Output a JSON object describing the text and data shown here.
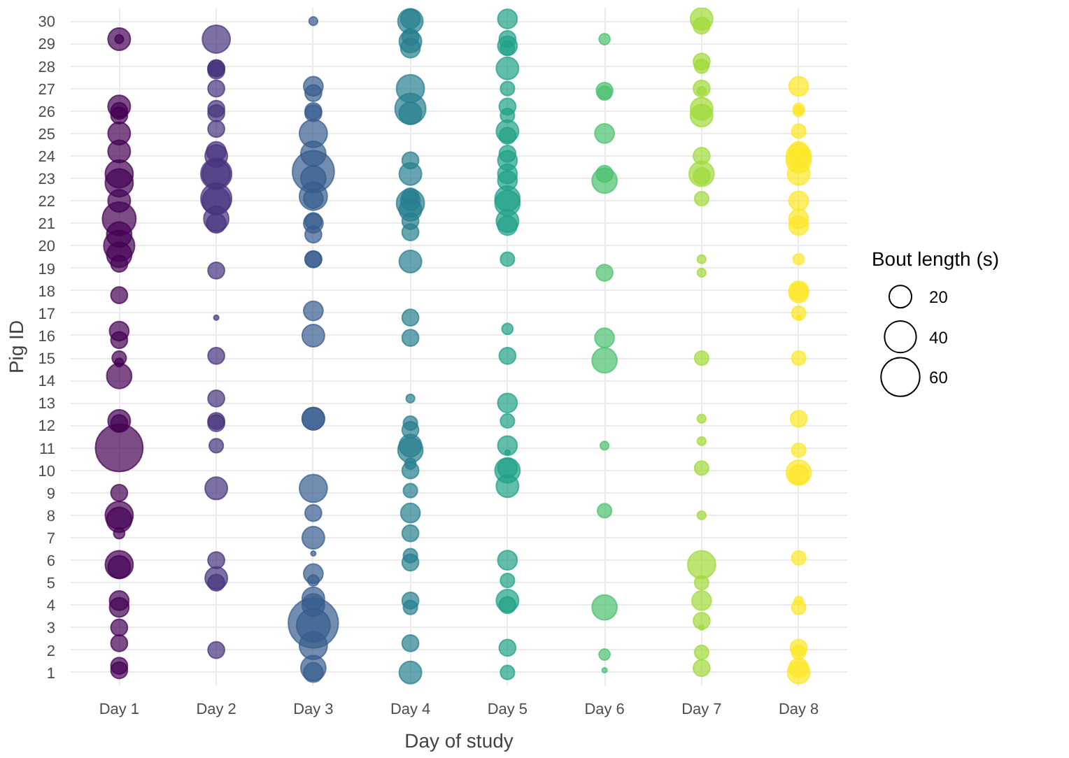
{
  "chart_data": {
    "type": "bubble",
    "xlabel": "Day of study",
    "ylabel": "Pig ID",
    "legend_title": "Bout length (s)",
    "grid": true,
    "marker": "circle",
    "categories": [
      "Day 1",
      "Day 2",
      "Day 3",
      "Day 4",
      "Day 5",
      "Day 6",
      "Day 7",
      "Day 8"
    ],
    "ylim": [
      0.4,
      30.6
    ],
    "yticks": [
      1,
      2,
      3,
      4,
      5,
      6,
      7,
      8,
      9,
      10,
      11,
      12,
      13,
      14,
      15,
      16,
      17,
      18,
      19,
      20,
      21,
      22,
      23,
      24,
      25,
      26,
      27,
      28,
      29,
      30
    ],
    "size_legend": [
      20,
      40,
      60
    ],
    "series": [
      {
        "colors": [
          "#440154",
          "#46337e",
          "#365c8d",
          "#277f8e",
          "#1fa187",
          "#4ac16d",
          "#a0da39",
          "#fde725"
        ],
        "values": [
          29.2,
          29.2,
          30,
          30.1,
          30.1,
          29.2,
          30.1,
          27.1
        ],
        "sizes": [
          20,
          31,
          3,
          15,
          15,
          5,
          20,
          15
        ]
      },
      {
        "colors": [
          "#440154",
          "#46337e",
          "#365c8d",
          "#277f8e",
          "#1fa187",
          "#4ac16d",
          "#a0da39",
          "#fde725"
        ],
        "values": [
          29.2,
          27.9,
          27.1,
          30,
          29.2,
          26.9,
          29.8,
          26.1
        ],
        "sizes": [
          3,
          11,
          15,
          25,
          11,
          11,
          11,
          5
        ]
      },
      {
        "colors": [
          "#440154",
          "#46337e",
          "#365c8d",
          "#277f8e",
          "#1fa187",
          "#4ac16d",
          "#a0da39",
          "#fde725"
        ],
        "values": [
          26.2,
          27.9,
          26.8,
          29.3,
          28.9,
          26.8,
          28.2,
          26
        ],
        "sizes": [
          20,
          11,
          11,
          11,
          15,
          8,
          11,
          5
        ]
      },
      {
        "colors": [
          "#440154",
          "#46337e",
          "#365c8d",
          "#277f8e",
          "#1fa187",
          "#4ac16d",
          "#a0da39",
          "#fde725"
        ],
        "values": [
          26,
          27.8,
          26,
          29.1,
          28.8,
          25,
          28,
          25.1
        ],
        "sizes": [
          11,
          11,
          11,
          20,
          8,
          15,
          8,
          8
        ]
      },
      {
        "colors": [
          "#440154",
          "#46337e",
          "#365c8d",
          "#277f8e",
          "#1fa187",
          "#4ac16d",
          "#a0da39",
          "#fde725"
        ],
        "values": [
          25.8,
          27,
          25.9,
          28.8,
          27.9,
          23.2,
          27,
          24.2
        ],
        "sizes": [
          11,
          11,
          11,
          15,
          20,
          11,
          11,
          15
        ]
      },
      {
        "colors": [
          "#440154",
          "#46337e",
          "#365c8d",
          "#277f8e",
          "#1fa187",
          "#4ac16d",
          "#a0da39",
          "#fde725"
        ],
        "values": [
          25,
          26.1,
          25,
          27,
          27,
          22.9,
          26.9,
          24
        ],
        "sizes": [
          20,
          11,
          31,
          31,
          8,
          25,
          3,
          25
        ]
      },
      {
        "colors": [
          "#440154",
          "#46337e",
          "#365c8d",
          "#277f8e",
          "#1fa187",
          "#4ac16d",
          "#a0da39",
          "#fde725"
        ],
        "values": [
          24.2,
          25.9,
          24.1,
          26.1,
          26.2,
          18.8,
          26.1,
          23.8
        ],
        "sizes": [
          20,
          11,
          25,
          38,
          11,
          11,
          20,
          25
        ]
      },
      {
        "colors": [
          "#440154",
          "#46337e",
          "#365c8d",
          "#277f8e",
          "#1fa187",
          "#4ac16d",
          "#a0da39",
          "#fde725"
        ],
        "values": [
          23.2,
          25.2,
          23.3,
          25.9,
          25.8,
          15.9,
          25.8,
          23.2
        ],
        "sizes": [
          31,
          11,
          70,
          20,
          8,
          15,
          20,
          20
        ]
      },
      {
        "colors": [
          "#440154",
          "#46337e",
          "#365c8d",
          "#277f8e",
          "#1fa187",
          "#4ac16d",
          "#a0da39",
          "#fde725"
        ],
        "values": [
          22.8,
          24.2,
          23,
          23.8,
          25.1,
          14.9,
          24,
          22
        ],
        "sizes": [
          31,
          15,
          25,
          11,
          20,
          25,
          11,
          15
        ]
      },
      {
        "colors": [
          "#440154",
          "#46337e",
          "#365c8d",
          "#277f8e",
          "#1fa187",
          "#4ac16d",
          "#a0da39",
          "#fde725"
        ],
        "values": [
          22,
          24,
          22.2,
          23.2,
          24.9,
          11.1,
          23.2,
          21.2
        ],
        "sizes": [
          20,
          20,
          31,
          20,
          11,
          3,
          25,
          15
        ]
      },
      {
        "colors": [
          "#440154",
          "#46337e",
          "#365c8d",
          "#277f8e",
          "#1fa187",
          "#4ac16d",
          "#a0da39",
          "#fde725"
        ],
        "values": [
          21.2,
          23.2,
          22.1,
          22.2,
          24.1,
          8.2,
          23.1,
          20.9
        ],
        "sizes": [
          45,
          38,
          15,
          11,
          11,
          8,
          11,
          15
        ]
      },
      {
        "colors": [
          "#440154",
          "#46337e",
          "#365c8d",
          "#277f8e",
          "#1fa187",
          "#4ac16d",
          "#a0da39",
          "#fde725"
        ],
        "values": [
          20.5,
          23.2,
          21.1,
          21.9,
          23.8,
          3.9,
          22.1,
          19.4
        ],
        "sizes": [
          25,
          31,
          11,
          31,
          15,
          25,
          8,
          5
        ]
      },
      {
        "colors": [
          "#440154",
          "#46337e",
          "#365c8d",
          "#277f8e",
          "#1fa187",
          "#4ac16d",
          "#a0da39",
          "#fde725"
        ],
        "values": [
          20,
          22.1,
          21,
          22,
          23.2,
          1.8,
          19.4,
          18
        ],
        "sizes": [
          38,
          38,
          15,
          15,
          15,
          5,
          3,
          15
        ]
      },
      {
        "colors": [
          "#440154",
          "#46337e",
          "#365c8d",
          "#277f8e",
          "#1fa187",
          "#4ac16d",
          "#a0da39",
          "#fde725"
        ],
        "values": [
          19.6,
          22,
          20.5,
          21.6,
          22.9,
          1.1,
          18.8,
          17.9
        ],
        "sizes": [
          25,
          31,
          11,
          20,
          15,
          1,
          3,
          15
        ]
      },
      {
        "colors": [
          "#440154",
          "#46337e",
          "#365c8d",
          "#277f8e",
          "#1fa187",
          "#4ac16d",
          "#a0da39",
          "#fde725"
        ],
        "values": [
          19.2,
          21.2,
          19.4,
          21.1,
          22.1,
          null,
          15,
          17
        ],
        "sizes": [
          11,
          25,
          11,
          11,
          25,
          null,
          8,
          8
        ]
      },
      {
        "colors": [
          "#440154",
          "#46337e",
          "#365c8d",
          "#277f8e",
          "#1fa187",
          "#4ac16d",
          "#a0da39",
          "#fde725"
        ],
        "values": [
          17.8,
          21,
          19.4,
          20.6,
          21.9,
          null,
          12.3,
          16.8
        ],
        "sizes": [
          11,
          15,
          11,
          11,
          25,
          null,
          3,
          1
        ]
      },
      {
        "colors": [
          "#440154",
          "#46337e",
          "#365c8d",
          "#277f8e",
          "#1fa187",
          "#4ac16d",
          "#a0da39",
          "#fde725"
        ],
        "values": [
          16.2,
          18.9,
          17.1,
          19.3,
          21.1,
          null,
          11.3,
          15
        ],
        "sizes": [
          15,
          11,
          15,
          20,
          20,
          null,
          3,
          8
        ]
      },
      {
        "colors": [
          "#440154",
          "#46337e",
          "#365c8d",
          "#277f8e",
          "#1fa187",
          "#4ac16d",
          "#a0da39",
          "#fde725"
        ],
        "values": [
          15.8,
          16.8,
          16,
          16.8,
          20.9,
          null,
          10.1,
          12.3
        ],
        "sizes": [
          11,
          1,
          20,
          11,
          15,
          null,
          8,
          11
        ]
      },
      {
        "colors": [
          "#440154",
          "#46337e",
          "#365c8d",
          "#277f8e",
          "#1fa187",
          "#4ac16d",
          "#a0da39",
          "#fde725"
        ],
        "values": [
          15,
          15.1,
          12.3,
          15.9,
          19.4,
          null,
          8,
          10.9
        ],
        "sizes": [
          8,
          11,
          20,
          11,
          8,
          null,
          3,
          8
        ]
      },
      {
        "colors": [
          "#440154",
          "#46337e",
          "#365c8d",
          "#277f8e",
          "#1fa187",
          "#4ac16d",
          "#a0da39",
          "#fde725"
        ],
        "values": [
          14.8,
          13.2,
          12.3,
          13.2,
          16.3,
          null,
          5.8,
          9.9
        ],
        "sizes": [
          3,
          11,
          20,
          3,
          5,
          null,
          31,
          25
        ]
      },
      {
        "colors": [
          "#440154",
          "#46337e",
          "#365c8d",
          "#277f8e",
          "#1fa187",
          "#4ac16d",
          "#a0da39",
          "#fde725"
        ],
        "values": [
          14.2,
          12.2,
          9.2,
          12.1,
          15.1,
          null,
          5,
          9.8
        ],
        "sizes": [
          25,
          11,
          31,
          8,
          11,
          null,
          8,
          15
        ]
      },
      {
        "colors": [
          "#440154",
          "#46337e",
          "#365c8d",
          "#277f8e",
          "#1fa187",
          "#4ac16d",
          "#a0da39",
          "#fde725"
        ],
        "values": [
          12.2,
          12.1,
          8.1,
          11.8,
          13,
          null,
          4.2,
          6.1
        ],
        "sizes": [
          20,
          11,
          11,
          11,
          15,
          null,
          15,
          8
        ]
      },
      {
        "colors": [
          "#440154",
          "#46337e",
          "#365c8d",
          "#277f8e",
          "#1fa187",
          "#4ac16d",
          "#a0da39",
          "#fde725"
        ],
        "values": [
          12.1,
          11.1,
          7,
          11.1,
          12.2,
          null,
          3.3,
          4.2
        ],
        "sizes": [
          11,
          8,
          20,
          20,
          8,
          null,
          11,
          3
        ]
      },
      {
        "colors": [
          "#440154",
          "#46337e",
          "#365c8d",
          "#277f8e",
          "#1fa187",
          "#4ac16d",
          "#a0da39",
          "#fde725"
        ],
        "values": [
          11,
          9.2,
          6.3,
          10.9,
          11.1,
          null,
          3,
          3.9
        ],
        "sizes": [
          90,
          20,
          1,
          25,
          15,
          null,
          1,
          8
        ]
      },
      {
        "colors": [
          "#440154",
          "#46337e",
          "#365c8d",
          "#277f8e",
          "#1fa187",
          "#4ac16d",
          "#a0da39",
          "#fde725"
        ],
        "values": [
          9,
          6,
          5.4,
          10.3,
          10.8,
          null,
          1.9,
          2.1
        ],
        "sizes": [
          11,
          11,
          15,
          5,
          1,
          null,
          8,
          11
        ]
      },
      {
        "colors": [
          "#440154",
          "#46337e",
          "#365c8d",
          "#277f8e",
          "#1fa187",
          "#4ac16d",
          "#a0da39",
          "#fde725"
        ],
        "values": [
          8,
          5.2,
          5.1,
          10,
          10.1,
          null,
          1.2,
          1.9
        ],
        "sizes": [
          31,
          20,
          5,
          11,
          15,
          null,
          11,
          8
        ]
      },
      {
        "colors": [
          "#440154",
          "#46337e",
          "#365c8d",
          "#277f8e",
          "#1fa187",
          "#4ac16d",
          "#a0da39",
          "#fde725"
        ],
        "values": [
          7.8,
          5,
          4.3,
          9.1,
          10,
          null,
          null,
          1.2
        ],
        "sizes": [
          25,
          11,
          20,
          8,
          25,
          null,
          null,
          15
        ]
      },
      {
        "colors": [
          "#440154",
          "#46337e",
          "#365c8d",
          "#277f8e",
          "#1fa187",
          "#4ac16d",
          "#a0da39",
          "#fde725"
        ],
        "values": [
          7.2,
          2,
          4,
          8.1,
          9.3,
          null,
          null,
          1
        ],
        "sizes": [
          5,
          11,
          20,
          15,
          20,
          null,
          null,
          20
        ]
      },
      {
        "colors": [
          "#440154",
          "#46337e",
          "#365c8d",
          "#277f8e",
          "#1fa187",
          "#4ac16d",
          "#a0da39",
          "#fde725"
        ],
        "values": [
          5.8,
          null,
          3.1,
          7.2,
          6,
          null,
          null,
          null
        ],
        "sizes": [
          31,
          null,
          45,
          11,
          15,
          null,
          null,
          null
        ]
      },
      {
        "colors": [
          "#440154",
          "#46337e",
          "#365c8d",
          "#277f8e",
          "#1fa187",
          "#4ac16d",
          "#a0da39",
          "#fde725"
        ],
        "values": [
          5.7,
          null,
          3.2,
          6.2,
          5.1,
          null,
          null,
          null
        ],
        "sizes": [
          20,
          null,
          100,
          8,
          8,
          null,
          null,
          null
        ]
      },
      {
        "colors": [
          "#440154",
          "#46337e",
          "#365c8d",
          "#277f8e",
          "#1fa187",
          "#4ac16d",
          "#a0da39",
          "#fde725"
        ],
        "values": [
          4.2,
          null,
          2.2,
          5.9,
          4.2,
          null,
          null,
          null
        ],
        "sizes": [
          15,
          null,
          31,
          11,
          20,
          null,
          null,
          null
        ]
      },
      {
        "colors": [
          "#440154",
          "#46337e",
          "#365c8d",
          "#277f8e",
          "#1fa187",
          "#4ac16d",
          "#a0da39",
          "#fde725"
        ],
        "values": [
          3.9,
          null,
          1.2,
          4.2,
          4,
          null,
          null,
          null
        ],
        "sizes": [
          15,
          null,
          25,
          11,
          11,
          null,
          null,
          null
        ]
      },
      {
        "colors": [
          "#440154",
          "#46337e",
          "#365c8d",
          "#277f8e",
          "#1fa187",
          "#4ac16d",
          "#a0da39",
          "#fde725"
        ],
        "values": [
          3,
          null,
          1,
          3.9,
          2.1,
          null,
          null,
          null
        ],
        "sizes": [
          11,
          null,
          15,
          8,
          11,
          null,
          null,
          null
        ]
      },
      {
        "colors": [
          "#440154",
          "#46337e",
          "#365c8d",
          "#277f8e",
          "#1fa187",
          "#4ac16d",
          "#a0da39",
          "#fde725"
        ],
        "values": [
          2.3,
          null,
          null,
          2.3,
          1,
          null,
          null,
          null
        ],
        "sizes": [
          11,
          null,
          null,
          11,
          8,
          null,
          null,
          null
        ]
      },
      {
        "colors": [
          "#440154",
          "#46337e",
          "#365c8d",
          "#277f8e",
          "#1fa187",
          "#4ac16d",
          "#a0da39",
          "#fde725"
        ],
        "values": [
          1.3,
          null,
          null,
          1,
          null,
          null,
          null,
          null
        ],
        "sizes": [
          11,
          null,
          null,
          20,
          null,
          null,
          null,
          null
        ]
      },
      {
        "colors": [
          "#440154",
          "#46337e",
          "#365c8d",
          "#277f8e",
          "#1fa187",
          "#4ac16d",
          "#a0da39",
          "#fde725"
        ],
        "values": [
          1.1,
          null,
          null,
          null,
          null,
          null,
          null,
          null
        ],
        "sizes": [
          11,
          null,
          null,
          null,
          null,
          null,
          null,
          null
        ]
      }
    ]
  }
}
